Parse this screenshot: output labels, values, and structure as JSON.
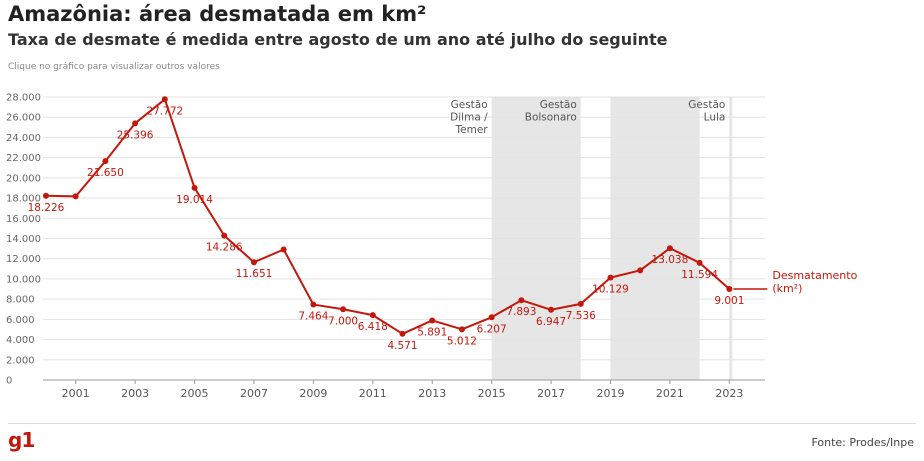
{
  "header": {
    "title": "Amazônia: área desmatada em km²",
    "subtitle": "Taxa de desmate é medida entre agosto de um ano até julho do seguinte",
    "note": "Clique no gráfico para visualizar outros valores"
  },
  "footer": {
    "logo": "g1",
    "source": "Fonte: Prodes/Inpe"
  },
  "chart_data": {
    "type": "line",
    "series_label": [
      "Desmatamento",
      "(km²)"
    ],
    "line_color": "#c4170c",
    "x": [
      2000,
      2001,
      2002,
      2003,
      2004,
      2005,
      2006,
      2007,
      2008,
      2009,
      2010,
      2011,
      2012,
      2013,
      2014,
      2015,
      2016,
      2017,
      2018,
      2019,
      2020,
      2021,
      2022,
      2023
    ],
    "values": [
      18226,
      18165,
      21650,
      25396,
      27772,
      19014,
      14286,
      11651,
      12911,
      7464,
      7000,
      6418,
      4571,
      5891,
      5012,
      6207,
      7893,
      6947,
      7536,
      10129,
      10851,
      13038,
      11594,
      9001
    ],
    "labels": [
      {
        "x": 2000,
        "text": "18.226",
        "pos": "below"
      },
      {
        "x": 2002,
        "text": "21.650",
        "pos": "below"
      },
      {
        "x": 2003,
        "text": "25.396",
        "pos": "below"
      },
      {
        "x": 2004,
        "text": "27.772",
        "pos": "below"
      },
      {
        "x": 2005,
        "text": "19.014",
        "pos": "below"
      },
      {
        "x": 2006,
        "text": "14.286",
        "pos": "below"
      },
      {
        "x": 2007,
        "text": "11.651",
        "pos": "below"
      },
      {
        "x": 2009,
        "text": "7.464",
        "pos": "below"
      },
      {
        "x": 2010,
        "text": "7.000",
        "pos": "below"
      },
      {
        "x": 2011,
        "text": "6.418",
        "pos": "below"
      },
      {
        "x": 2012,
        "text": "4.571",
        "pos": "below"
      },
      {
        "x": 2013,
        "text": "5.891",
        "pos": "below"
      },
      {
        "x": 2014,
        "text": "5.012",
        "pos": "below"
      },
      {
        "x": 2015,
        "text": "6.207",
        "pos": "below"
      },
      {
        "x": 2016,
        "text": "7.893",
        "pos": "below"
      },
      {
        "x": 2017,
        "text": "6.947",
        "pos": "below"
      },
      {
        "x": 2018,
        "text": "7.536",
        "pos": "below"
      },
      {
        "x": 2019,
        "text": "10.129",
        "pos": "below"
      },
      {
        "x": 2021,
        "text": "13.038",
        "pos": "below"
      },
      {
        "x": 2022,
        "text": "11.594",
        "pos": "below"
      },
      {
        "x": 2023,
        "text": "9.001",
        "pos": "below"
      }
    ],
    "x_ticks": [
      2001,
      2003,
      2005,
      2007,
      2009,
      2011,
      2013,
      2015,
      2017,
      2019,
      2021,
      2023
    ],
    "xlim": [
      1999.9,
      2024.2
    ],
    "ylim": [
      0,
      28000
    ],
    "y_ticks": [
      0,
      2000,
      4000,
      6000,
      8000,
      10000,
      12000,
      14000,
      16000,
      18000,
      20000,
      22000,
      24000,
      26000,
      28000
    ],
    "y_tick_labels": [
      "0",
      "2.000",
      "4.000",
      "6.000",
      "8.000",
      "10.000",
      "12.000",
      "14.000",
      "16.000",
      "18.000",
      "20.000",
      "22.000",
      "24.000",
      "26.000",
      "28.000"
    ],
    "grid": true,
    "shaded_periods": [
      {
        "from": 2015,
        "to": 2018,
        "color": "#e6e6e6"
      },
      {
        "from": 2019,
        "to": 2022,
        "color": "#e6e6e6"
      },
      {
        "from": 2023,
        "to": 2023.1,
        "color": "#e6e6e6"
      }
    ],
    "annotations": [
      {
        "x": 2015,
        "lines": [
          "Gestão",
          "Dilma /",
          "Temer"
        ]
      },
      {
        "x": 2018,
        "lines": [
          "Gestão",
          "Bolsonaro"
        ]
      },
      {
        "x": 2023,
        "lines": [
          "Gestão",
          "Lula"
        ]
      }
    ]
  }
}
